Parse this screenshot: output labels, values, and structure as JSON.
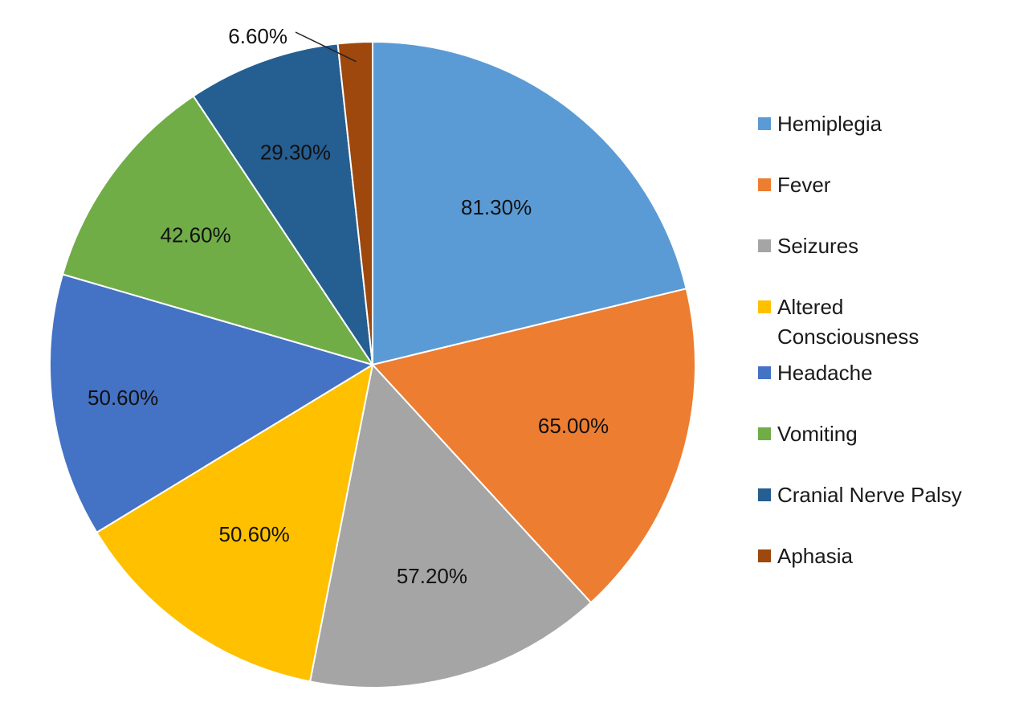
{
  "chart_data": {
    "type": "pie",
    "title": "",
    "legend_position": "right",
    "slices": [
      {
        "label": "Hemiplegia",
        "value": 81.3,
        "display": "81.30%",
        "color": "#5B9BD5"
      },
      {
        "label": "Fever",
        "value": 65.0,
        "display": "65.00%",
        "color": "#ED7D31"
      },
      {
        "label": "Seizures",
        "value": 57.2,
        "display": "57.20%",
        "color": "#A5A5A5"
      },
      {
        "label": "Altered Consciousness",
        "value": 50.6,
        "display": "50.60%",
        "color": "#FFC000"
      },
      {
        "label": "Headache",
        "value": 50.6,
        "display": "50.60%",
        "color": "#4472C4"
      },
      {
        "label": "Vomiting",
        "value": 42.6,
        "display": "42.60%",
        "color": "#70AD47"
      },
      {
        "label": "Cranial Nerve Palsy",
        "value": 29.3,
        "display": "29.30%",
        "color": "#255E91"
      },
      {
        "label": "Aphasia",
        "value": 6.6,
        "display": "6.60%",
        "color": "#9E480E"
      }
    ]
  }
}
